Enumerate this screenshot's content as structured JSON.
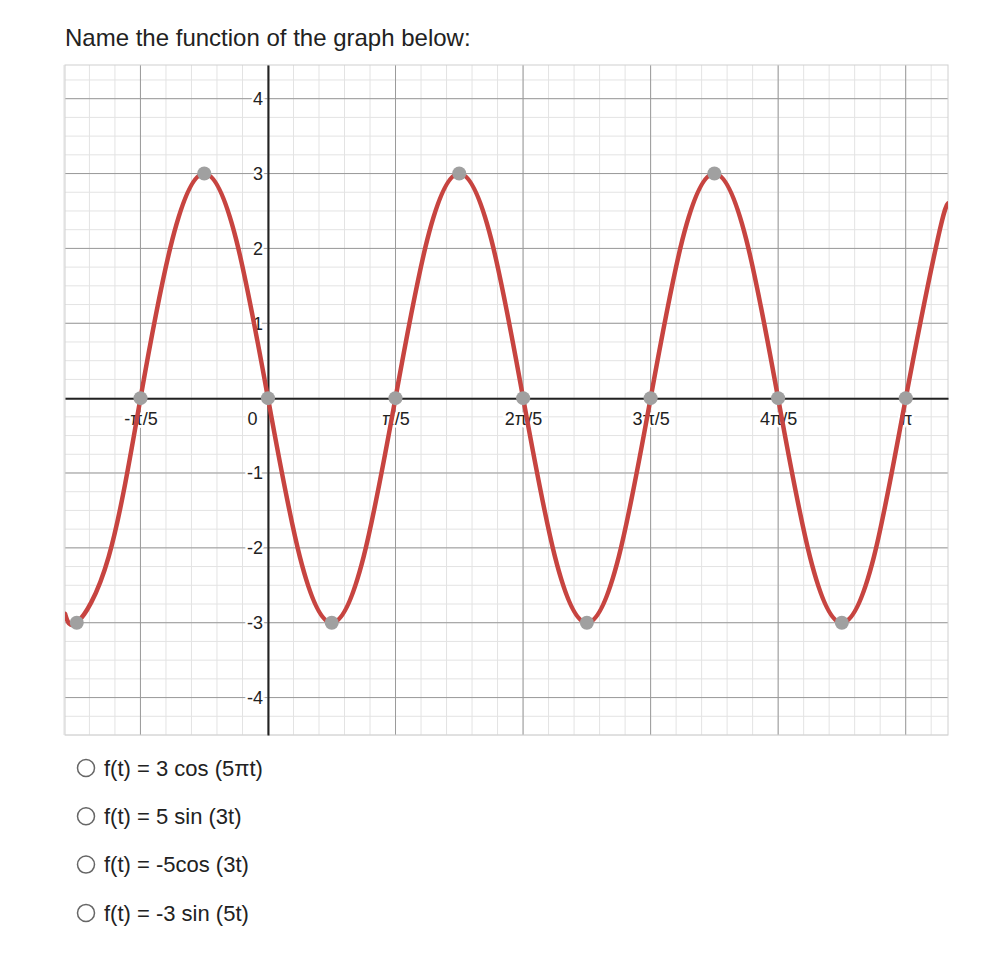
{
  "chart_data": {
    "type": "line",
    "title": "Name the function of the graph below:",
    "xlim": [
      -1.0,
      3.35
    ],
    "ylim": [
      -4.5,
      4.45
    ],
    "xticks": [
      {
        "value": -0.6283,
        "label": "-π/5"
      },
      0,
      {
        "value": 0.6283,
        "label": "π/5"
      },
      {
        "value": 1.2566,
        "label": "2π/5"
      },
      {
        "value": 1.885,
        "label": "3π/5"
      },
      {
        "value": 2.5133,
        "label": "4π/5"
      },
      {
        "value": 3.1416,
        "label": "π"
      }
    ],
    "yticks": [
      -4,
      -3,
      -2,
      -1,
      1,
      2,
      3,
      4
    ],
    "grid": true,
    "series": [
      {
        "type": "line",
        "color": "#c74440",
        "x": [
          -1.0,
          -0.942,
          -0.785,
          -0.628,
          -0.471,
          -0.314,
          -0.157,
          0,
          0.157,
          0.314,
          0.471,
          0.628,
          0.785,
          0.942,
          1.1,
          1.257,
          1.414,
          1.571,
          1.728,
          1.885,
          2.042,
          2.199,
          2.356,
          2.513,
          2.67,
          2.827,
          2.985,
          3.142,
          3.299,
          3.35
        ],
        "values": [
          -2.88,
          -3,
          -2.12,
          0,
          2.12,
          3,
          2.12,
          0,
          -2.12,
          -3,
          -2.12,
          0,
          2.12,
          3,
          2.12,
          0,
          -2.12,
          -3,
          -2.12,
          0,
          2.12,
          3,
          2.12,
          0,
          -2.12,
          -3,
          -2.12,
          0,
          2.12,
          2.6
        ]
      },
      {
        "type": "scatter",
        "color": "#a0a0a0",
        "marker": "circle",
        "x": [
          -0.942,
          -0.628,
          -0.314,
          0,
          0.314,
          0.628,
          0.942,
          1.257,
          1.571,
          1.885,
          2.199,
          2.513,
          2.827,
          3.142
        ],
        "values": [
          -3,
          0,
          3,
          0,
          -3,
          0,
          3,
          0,
          -3,
          0,
          3,
          0,
          -3,
          0
        ]
      }
    ]
  },
  "options": [
    "f(t) = 3 cos (5πt)",
    "f(t) = 5 sin (3t)",
    "f(t) = -5cos (3t)",
    "f(t) = -3 sin (5t)"
  ]
}
